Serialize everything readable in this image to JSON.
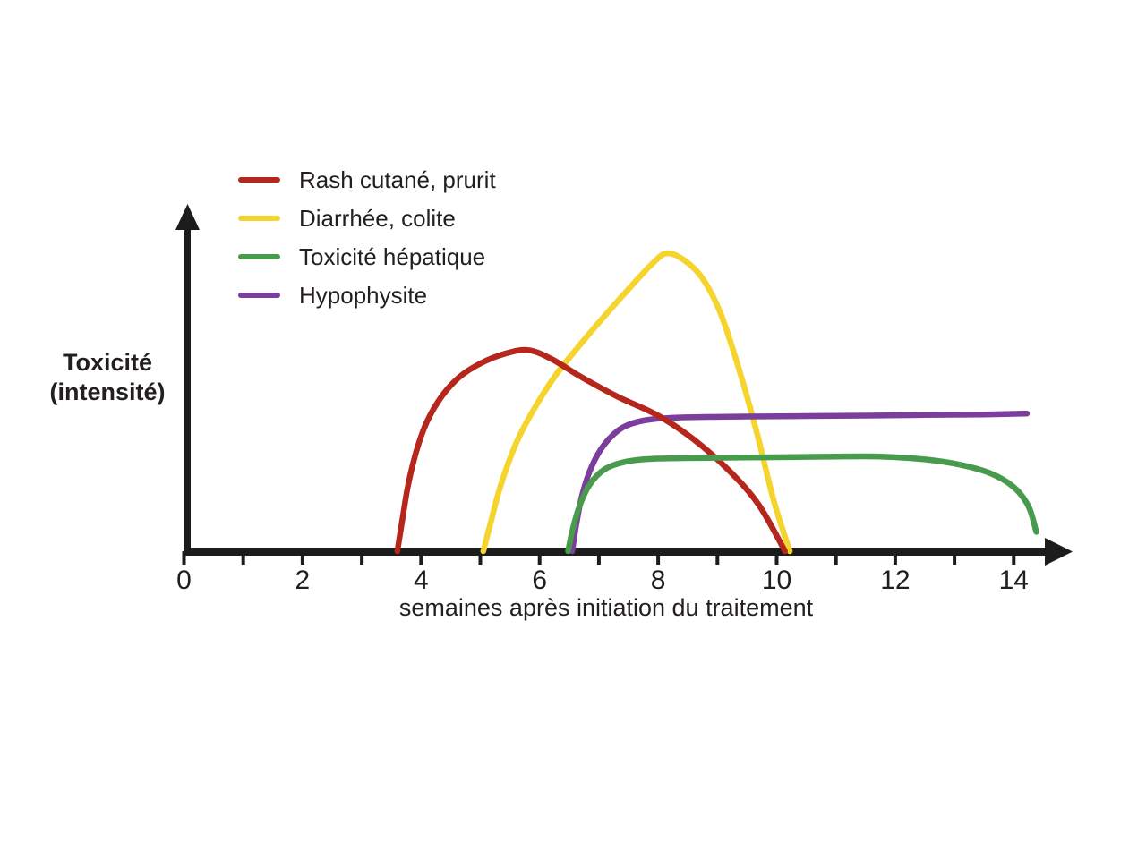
{
  "chart_data": {
    "type": "line",
    "title": "",
    "xlabel": "semaines après initiation du traitement",
    "ylabel": "Toxicité (intensité)",
    "ylabel_lines": [
      "Toxicité",
      "(intensité)"
    ],
    "legend_position": "top-left",
    "grid": false,
    "background": "#ffffff",
    "axis_color": "#1c1c1c",
    "text_color": "#231f20",
    "x_axis": {
      "labeled_ticks": [
        0,
        2,
        4,
        6,
        8,
        10,
        12,
        14
      ],
      "minor_ticks": [
        1,
        3,
        5,
        7,
        9,
        11,
        13
      ],
      "range": [
        0,
        15
      ]
    },
    "y_axis": {
      "tick_labels": [],
      "range_relative": [
        0,
        1.1
      ]
    },
    "series": [
      {
        "id": "rash-cutane-prurit",
        "name": "Rash cutané, prurit",
        "color": "#b5271d",
        "points": [
          [
            3.6,
            0
          ],
          [
            3.68,
            0.1
          ],
          [
            3.78,
            0.22
          ],
          [
            3.92,
            0.335
          ],
          [
            4.1,
            0.435
          ],
          [
            4.35,
            0.52
          ],
          [
            4.65,
            0.585
          ],
          [
            5.0,
            0.63
          ],
          [
            5.4,
            0.662
          ],
          [
            5.8,
            0.675
          ],
          [
            6.2,
            0.645
          ],
          [
            6.7,
            0.585
          ],
          [
            7.3,
            0.52
          ],
          [
            8.0,
            0.455
          ],
          [
            8.6,
            0.375
          ],
          [
            9.2,
            0.27
          ],
          [
            9.7,
            0.155
          ],
          [
            10.14,
            0
          ]
        ]
      },
      {
        "id": "diarrhee-colite",
        "name": "Diarrhée, colite",
        "color": "#f4d42d",
        "points": [
          [
            5.05,
            0
          ],
          [
            5.18,
            0.1
          ],
          [
            5.35,
            0.225
          ],
          [
            5.6,
            0.36
          ],
          [
            5.9,
            0.475
          ],
          [
            6.25,
            0.585
          ],
          [
            6.65,
            0.685
          ],
          [
            7.1,
            0.79
          ],
          [
            7.55,
            0.89
          ],
          [
            7.9,
            0.965
          ],
          [
            8.15,
            1.0
          ],
          [
            8.45,
            0.975
          ],
          [
            8.75,
            0.915
          ],
          [
            9.05,
            0.8
          ],
          [
            9.35,
            0.62
          ],
          [
            9.65,
            0.41
          ],
          [
            9.95,
            0.17
          ],
          [
            10.22,
            0
          ]
        ]
      },
      {
        "id": "toxicite-hepatique",
        "name": "Toxicité hépatique",
        "color": "#489a4c",
        "points": [
          [
            6.48,
            0
          ],
          [
            6.56,
            0.075
          ],
          [
            6.68,
            0.155
          ],
          [
            6.85,
            0.225
          ],
          [
            7.1,
            0.275
          ],
          [
            7.45,
            0.3
          ],
          [
            7.9,
            0.31
          ],
          [
            8.8,
            0.313
          ],
          [
            9.8,
            0.315
          ],
          [
            10.8,
            0.317
          ],
          [
            11.7,
            0.318
          ],
          [
            12.5,
            0.308
          ],
          [
            13.1,
            0.29
          ],
          [
            13.6,
            0.262
          ],
          [
            14.0,
            0.215
          ],
          [
            14.25,
            0.15
          ],
          [
            14.38,
            0.065
          ]
        ]
      },
      {
        "id": "hypophysite",
        "name": "Hypophysite",
        "color": "#7b3e9d",
        "points": [
          [
            6.55,
            0
          ],
          [
            6.62,
            0.09
          ],
          [
            6.72,
            0.19
          ],
          [
            6.88,
            0.285
          ],
          [
            7.1,
            0.36
          ],
          [
            7.4,
            0.415
          ],
          [
            7.8,
            0.44
          ],
          [
            8.4,
            0.449
          ],
          [
            9.5,
            0.452
          ],
          [
            11.0,
            0.454
          ],
          [
            12.5,
            0.457
          ],
          [
            13.5,
            0.459
          ],
          [
            14.22,
            0.462
          ]
        ]
      }
    ],
    "draw_order": [
      "diarrhee-colite",
      "hypophysite",
      "rash-cutane-prurit",
      "toxicite-hepatique"
    ]
  }
}
